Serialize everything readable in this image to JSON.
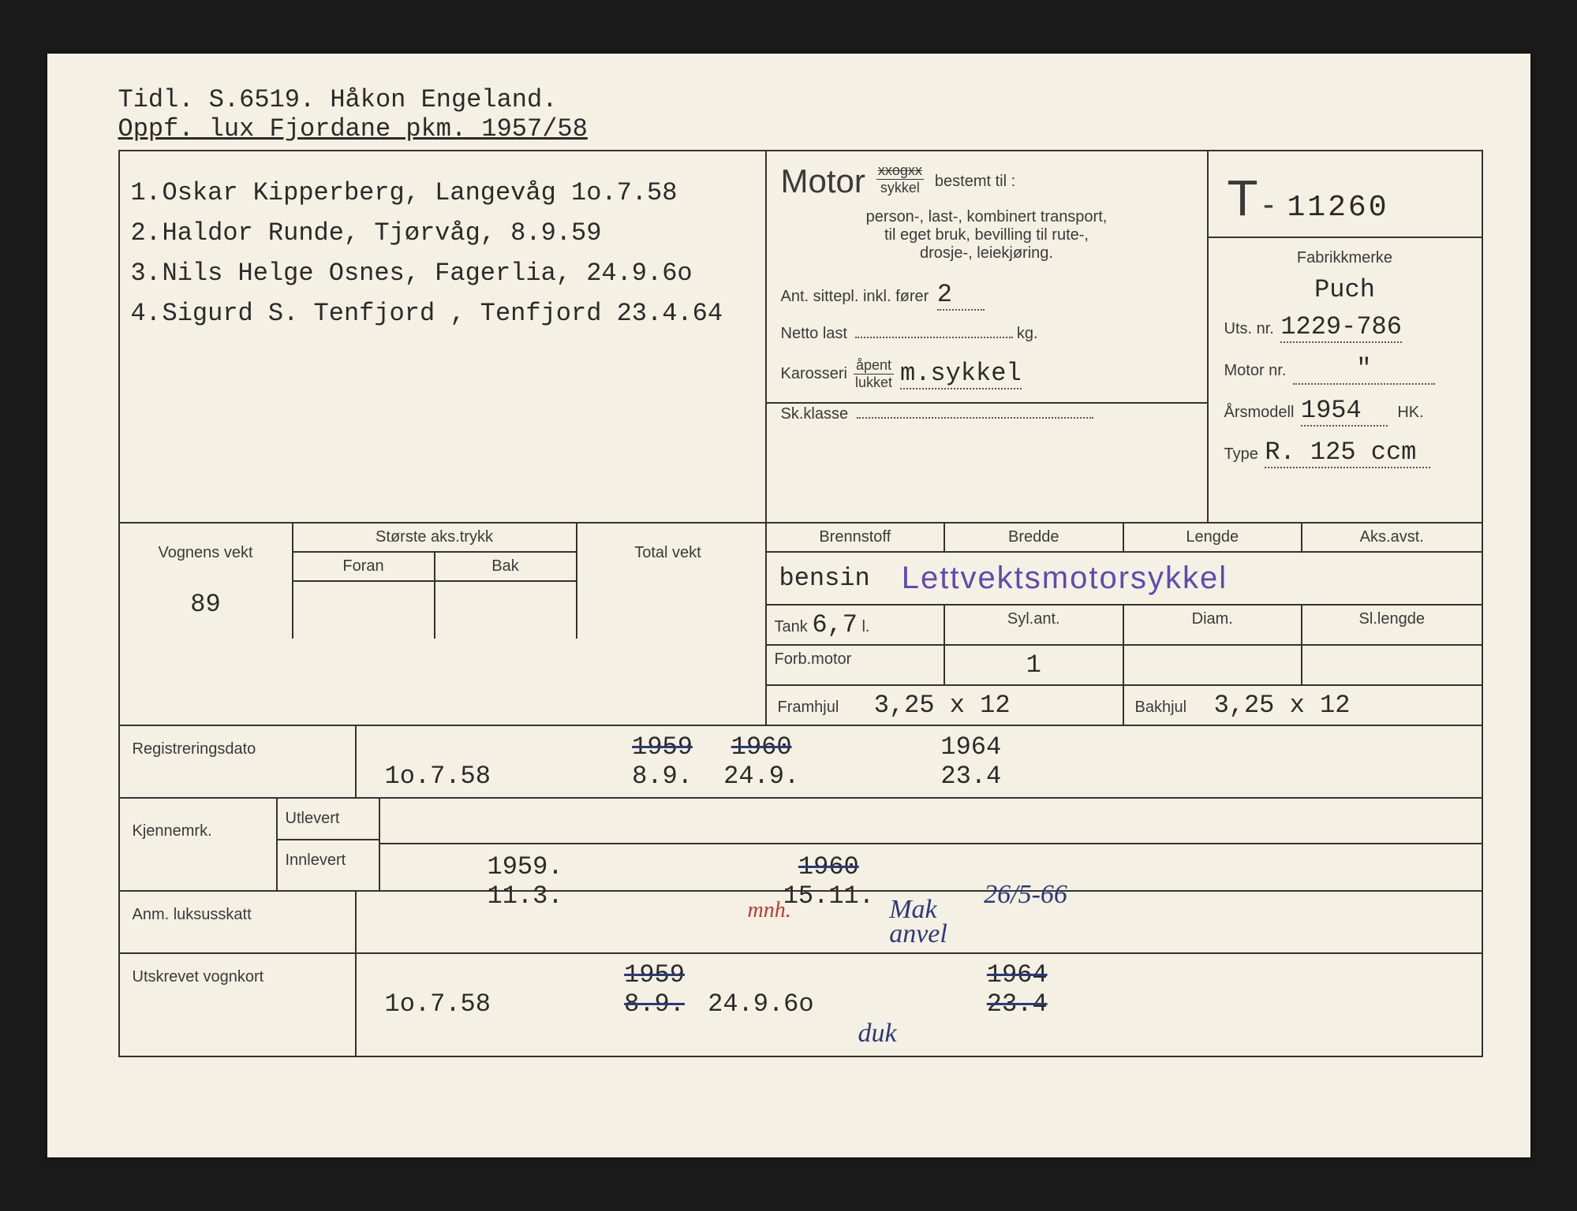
{
  "header": {
    "line1": "Tidl. S.6519. Håkon Engeland.",
    "line2": "Oppf. lux Fjordane pkm. 1957/58"
  },
  "owners": [
    {
      "n": "1.",
      "text": "Oskar Kipperberg, Langevåg  1o.7.58"
    },
    {
      "n": "2.",
      "text": "Haldor Runde, Tjørvåg, 8.9.59"
    },
    {
      "n": "3.",
      "text": "Nils Helge Osnes, Fagerlia, 24.9.6o"
    },
    {
      "n": "4.",
      "text": "Sigurd S. Tenfjord , Tenfjord 23.4.64"
    }
  ],
  "motor_box": {
    "motor_label": "Motor",
    "vogn_strike": "xxogxx",
    "sykkel": "sykkel",
    "bestemt": "bestemt til :",
    "desc1": "person-, last-, kombinert transport,",
    "desc2": "til eget bruk, bevilling til rute-,",
    "desc3": "drosje-, leiekjøring.",
    "sittepl_label": "Ant. sittepl. inkl. fører",
    "sittepl_val": "2",
    "netto_label": "Netto last",
    "netto_unit": "kg.",
    "karosseri_label": "Karosseri",
    "apent": "åpent",
    "lukket": "lukket",
    "karosseri_val": "m.sykkel",
    "skklasse_label": "Sk.klasse"
  },
  "reg_box": {
    "prefix": "T",
    "dash": "-",
    "number": "11260",
    "fabrikk_label": "Fabrikkmerke",
    "fabrikk_val": "Puch",
    "uts_label": "Uts. nr.",
    "uts_val": "1229-786",
    "motor_label": "Motor nr.",
    "motor_val": "\"",
    "ars_label": "Årsmodell",
    "ars_val": "1954",
    "hk_label": "HK.",
    "type_label": "Type",
    "type_val": "R. 125 ccm"
  },
  "dims1": {
    "brennstoff_label": "Brennstoff",
    "bredde_label": "Bredde",
    "lengde_label": "Lengde",
    "aks_label": "Aks.avst.",
    "brennstoff_val": "bensin",
    "stamp": "Lettvektsmotorsykkel"
  },
  "dims2": {
    "tank_label": "Tank",
    "tank_val": "6,7",
    "tank_unit": "l.",
    "syl_label": "Syl.ant.",
    "diam_label": "Diam.",
    "sllen_label": "Sl.lengde",
    "forb_label": "Forb.motor",
    "forb_val": "1"
  },
  "weights": {
    "vogn_label": "Vognens vekt",
    "storste_label": "Største aks.trykk",
    "foran_label": "Foran",
    "bak_label": "Bak",
    "total_label": "Total vekt",
    "vogn_val": "89"
  },
  "wheels": {
    "fram_label": "Framhjul",
    "fram_val": "3,25 x 12",
    "bak_label": "Bakhjul",
    "bak_val": "3,25 x 12"
  },
  "regdato": {
    "label": "Registreringsdato",
    "d1": "1o.7.58",
    "d2a": "1959",
    "d2b": "8.9.",
    "d3a": "1960",
    "d3b": "24.9.",
    "d4a": "1964",
    "d4b": "23.4"
  },
  "kjennmrk": {
    "label": "Kjennemrk.",
    "utlevert": "Utlevert",
    "innlevert": "Innlevert",
    "d1a": "1959.",
    "d1b": "11.3.",
    "d2a": "1960",
    "d2b": "15.11.",
    "hand": "26/5-66"
  },
  "anm": {
    "label": "Anm. luksusskatt",
    "red_squig": "mnh.",
    "blue_scrawl": "Mak\nanvel"
  },
  "utskrevet": {
    "label": "Utskrevet vognkort",
    "d1": "1o.7.58",
    "d2a": "1959",
    "d2b": "8.9.",
    "d3": "24.9.6o",
    "d4a": "1964",
    "d4b": "23.4",
    "scrawl": "duk"
  }
}
